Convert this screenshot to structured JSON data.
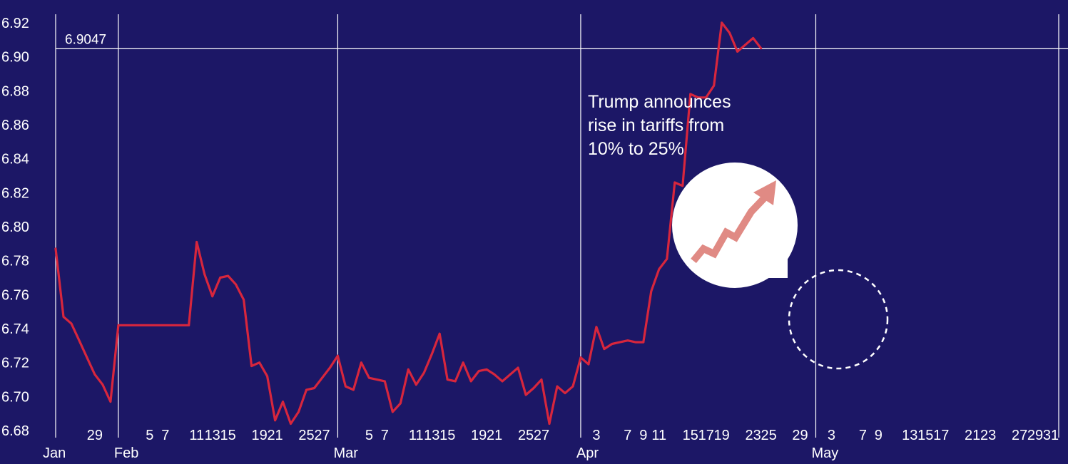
{
  "chart_data": {
    "type": "line",
    "ylim": [
      6.675,
      6.925
    ],
    "y_ticks": [
      "6.92",
      "6.90",
      "6.88",
      "6.86",
      "6.84",
      "6.82",
      "6.80",
      "6.78",
      "6.76",
      "6.74",
      "6.72",
      "6.70",
      "6.68"
    ],
    "reference_line": {
      "value": 6.9047,
      "label": "6.9047"
    },
    "months": [
      {
        "label": "Jan",
        "date": "2019-01-24"
      },
      {
        "label": "Feb",
        "date": "2019-02-01"
      },
      {
        "label": "Mar",
        "date": "2019-03-01"
      },
      {
        "label": "Apr",
        "date": "2019-04-01"
      },
      {
        "label": "May",
        "date": "2019-05-01"
      }
    ],
    "month_lines": [
      "2019-02-01",
      "2019-03-01",
      "2019-04-01",
      "2019-05-01",
      "2019-06-01"
    ],
    "day_ticks": [
      {
        "label": "29",
        "date": "2019-01-29"
      },
      {
        "label": "5",
        "date": "2019-02-05"
      },
      {
        "label": "7",
        "date": "2019-02-07"
      },
      {
        "label": "11",
        "date": "2019-02-11"
      },
      {
        "label": "13",
        "date": "2019-02-13"
      },
      {
        "label": "15",
        "date": "2019-02-15"
      },
      {
        "label": "19",
        "date": "2019-02-19"
      },
      {
        "label": "21",
        "date": "2019-02-21"
      },
      {
        "label": "25",
        "date": "2019-02-25"
      },
      {
        "label": "27",
        "date": "2019-02-27"
      },
      {
        "label": "5",
        "date": "2019-03-05"
      },
      {
        "label": "7",
        "date": "2019-03-07"
      },
      {
        "label": "11",
        "date": "2019-03-11"
      },
      {
        "label": "13",
        "date": "2019-03-13"
      },
      {
        "label": "15",
        "date": "2019-03-15"
      },
      {
        "label": "19",
        "date": "2019-03-19"
      },
      {
        "label": "21",
        "date": "2019-03-21"
      },
      {
        "label": "25",
        "date": "2019-03-25"
      },
      {
        "label": "27",
        "date": "2019-03-27"
      },
      {
        "label": "3",
        "date": "2019-04-03"
      },
      {
        "label": "7",
        "date": "2019-04-07"
      },
      {
        "label": "9",
        "date": "2019-04-09"
      },
      {
        "label": "11",
        "date": "2019-04-11"
      },
      {
        "label": "15",
        "date": "2019-04-15"
      },
      {
        "label": "17",
        "date": "2019-04-17"
      },
      {
        "label": "19",
        "date": "2019-04-19"
      },
      {
        "label": "23",
        "date": "2019-04-23"
      },
      {
        "label": "25",
        "date": "2019-04-25"
      },
      {
        "label": "29",
        "date": "2019-04-29"
      },
      {
        "label": "3",
        "date": "2019-05-03"
      },
      {
        "label": "7",
        "date": "2019-05-07"
      },
      {
        "label": "9",
        "date": "2019-05-09"
      },
      {
        "label": "13",
        "date": "2019-05-13"
      },
      {
        "label": "15",
        "date": "2019-05-15"
      },
      {
        "label": "17",
        "date": "2019-05-17"
      },
      {
        "label": "21",
        "date": "2019-05-21"
      },
      {
        "label": "23",
        "date": "2019-05-23"
      },
      {
        "label": "27",
        "date": "2019-05-27"
      },
      {
        "label": "29",
        "date": "2019-05-29"
      },
      {
        "label": "31",
        "date": "2019-05-31"
      }
    ],
    "series": [
      {
        "color": "#d7263d",
        "points": [
          [
            "2019-01-24",
            6.787
          ],
          [
            "2019-01-25",
            6.747
          ],
          [
            "2019-01-26",
            6.743
          ],
          [
            "2019-01-27",
            6.733
          ],
          [
            "2019-01-28",
            6.723
          ],
          [
            "2019-01-29",
            6.713
          ],
          [
            "2019-01-30",
            6.707
          ],
          [
            "2019-01-31",
            6.697
          ],
          [
            "2019-02-01",
            6.742
          ],
          [
            "2019-02-10",
            6.742
          ],
          [
            "2019-02-11",
            6.791
          ],
          [
            "2019-02-12",
            6.772
          ],
          [
            "2019-02-13",
            6.759
          ],
          [
            "2019-02-14",
            6.77
          ],
          [
            "2019-02-15",
            6.771
          ],
          [
            "2019-02-16",
            6.766
          ],
          [
            "2019-02-17",
            6.757
          ],
          [
            "2019-02-18",
            6.718
          ],
          [
            "2019-02-19",
            6.72
          ],
          [
            "2019-02-20",
            6.712
          ],
          [
            "2019-02-21",
            6.686
          ],
          [
            "2019-02-22",
            6.697
          ],
          [
            "2019-02-23",
            6.684
          ],
          [
            "2019-02-24",
            6.691
          ],
          [
            "2019-02-25",
            6.704
          ],
          [
            "2019-02-26",
            6.705
          ],
          [
            "2019-02-27",
            6.711
          ],
          [
            "2019-02-28",
            6.717
          ],
          [
            "2019-03-01",
            6.724
          ],
          [
            "2019-03-02",
            6.706
          ],
          [
            "2019-03-03",
            6.704
          ],
          [
            "2019-03-04",
            6.72
          ],
          [
            "2019-03-05",
            6.711
          ],
          [
            "2019-03-06",
            6.71
          ],
          [
            "2019-03-07",
            6.709
          ],
          [
            "2019-03-08",
            6.691
          ],
          [
            "2019-03-09",
            6.696
          ],
          [
            "2019-03-10",
            6.716
          ],
          [
            "2019-03-11",
            6.707
          ],
          [
            "2019-03-12",
            6.714
          ],
          [
            "2019-03-13",
            6.725
          ],
          [
            "2019-03-14",
            6.737
          ],
          [
            "2019-03-15",
            6.71
          ],
          [
            "2019-03-16",
            6.709
          ],
          [
            "2019-03-17",
            6.72
          ],
          [
            "2019-03-18",
            6.709
          ],
          [
            "2019-03-19",
            6.715
          ],
          [
            "2019-03-20",
            6.716
          ],
          [
            "2019-03-21",
            6.713
          ],
          [
            "2019-03-22",
            6.709
          ],
          [
            "2019-03-23",
            6.713
          ],
          [
            "2019-03-24",
            6.717
          ],
          [
            "2019-03-25",
            6.701
          ],
          [
            "2019-03-26",
            6.705
          ],
          [
            "2019-03-27",
            6.71
          ],
          [
            "2019-03-28",
            6.684
          ],
          [
            "2019-03-29",
            6.706
          ],
          [
            "2019-03-30",
            6.702
          ],
          [
            "2019-03-31",
            6.706
          ],
          [
            "2019-04-01",
            6.723
          ],
          [
            "2019-04-02",
            6.719
          ],
          [
            "2019-04-03",
            6.741
          ],
          [
            "2019-04-04",
            6.728
          ],
          [
            "2019-04-05",
            6.731
          ],
          [
            "2019-04-06",
            6.732
          ],
          [
            "2019-04-07",
            6.733
          ],
          [
            "2019-04-08",
            6.732
          ],
          [
            "2019-04-09",
            6.732
          ],
          [
            "2019-04-10",
            6.762
          ],
          [
            "2019-04-11",
            6.775
          ],
          [
            "2019-04-12",
            6.781
          ],
          [
            "2019-04-13",
            6.826
          ],
          [
            "2019-04-14",
            6.824
          ],
          [
            "2019-04-15",
            6.878
          ],
          [
            "2019-04-16",
            6.876
          ],
          [
            "2019-04-17",
            6.876
          ],
          [
            "2019-04-18",
            6.883
          ],
          [
            "2019-04-19",
            6.92
          ],
          [
            "2019-04-20",
            6.914
          ],
          [
            "2019-04-21",
            6.903
          ],
          [
            "2019-04-22",
            6.907
          ],
          [
            "2019-04-23",
            6.911
          ],
          [
            "2019-04-24",
            6.905
          ]
        ]
      }
    ],
    "annotation": {
      "lines": [
        "Trump announces",
        "rise in tariffs from",
        "10% to 25%"
      ]
    }
  }
}
